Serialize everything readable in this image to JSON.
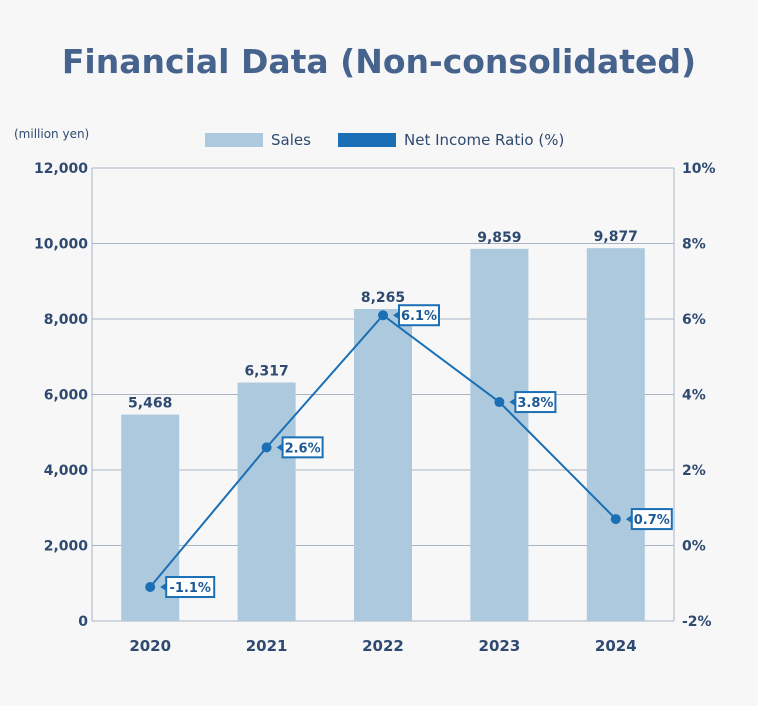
{
  "chart_data": {
    "type": "bar+line",
    "title": "Financial Data (Non-consolidated)",
    "unit_label": "(million yen)",
    "categories": [
      "2020",
      "2021",
      "2022",
      "2023",
      "2024"
    ],
    "series": [
      {
        "name": "Sales",
        "type": "bar",
        "axis": "left",
        "values": [
          5468,
          6317,
          8265,
          9859,
          9877
        ],
        "labels": [
          "5,468",
          "6,317",
          "8,265",
          "9,859",
          "9,877"
        ],
        "color": "#adc9dd"
      },
      {
        "name": "Net Income Ratio (%)",
        "type": "line",
        "axis": "right",
        "values": [
          -1.1,
          2.6,
          6.1,
          3.8,
          0.7
        ],
        "labels": [
          "-1.1%",
          "2.6%",
          "6.1%",
          "3.8%",
          "0.7%"
        ],
        "color": "#1a6fb5"
      }
    ],
    "left_axis": {
      "range": [
        0,
        12000
      ],
      "ticks": [
        "0",
        "2,000",
        "4,000",
        "6,000",
        "8,000",
        "10,000",
        "12,000"
      ]
    },
    "right_axis": {
      "range": [
        -2,
        10
      ],
      "ticks": [
        "-2%",
        "0%",
        "2%",
        "4%",
        "6%",
        "8%",
        "10%"
      ]
    },
    "grid": true,
    "legend": "top"
  }
}
